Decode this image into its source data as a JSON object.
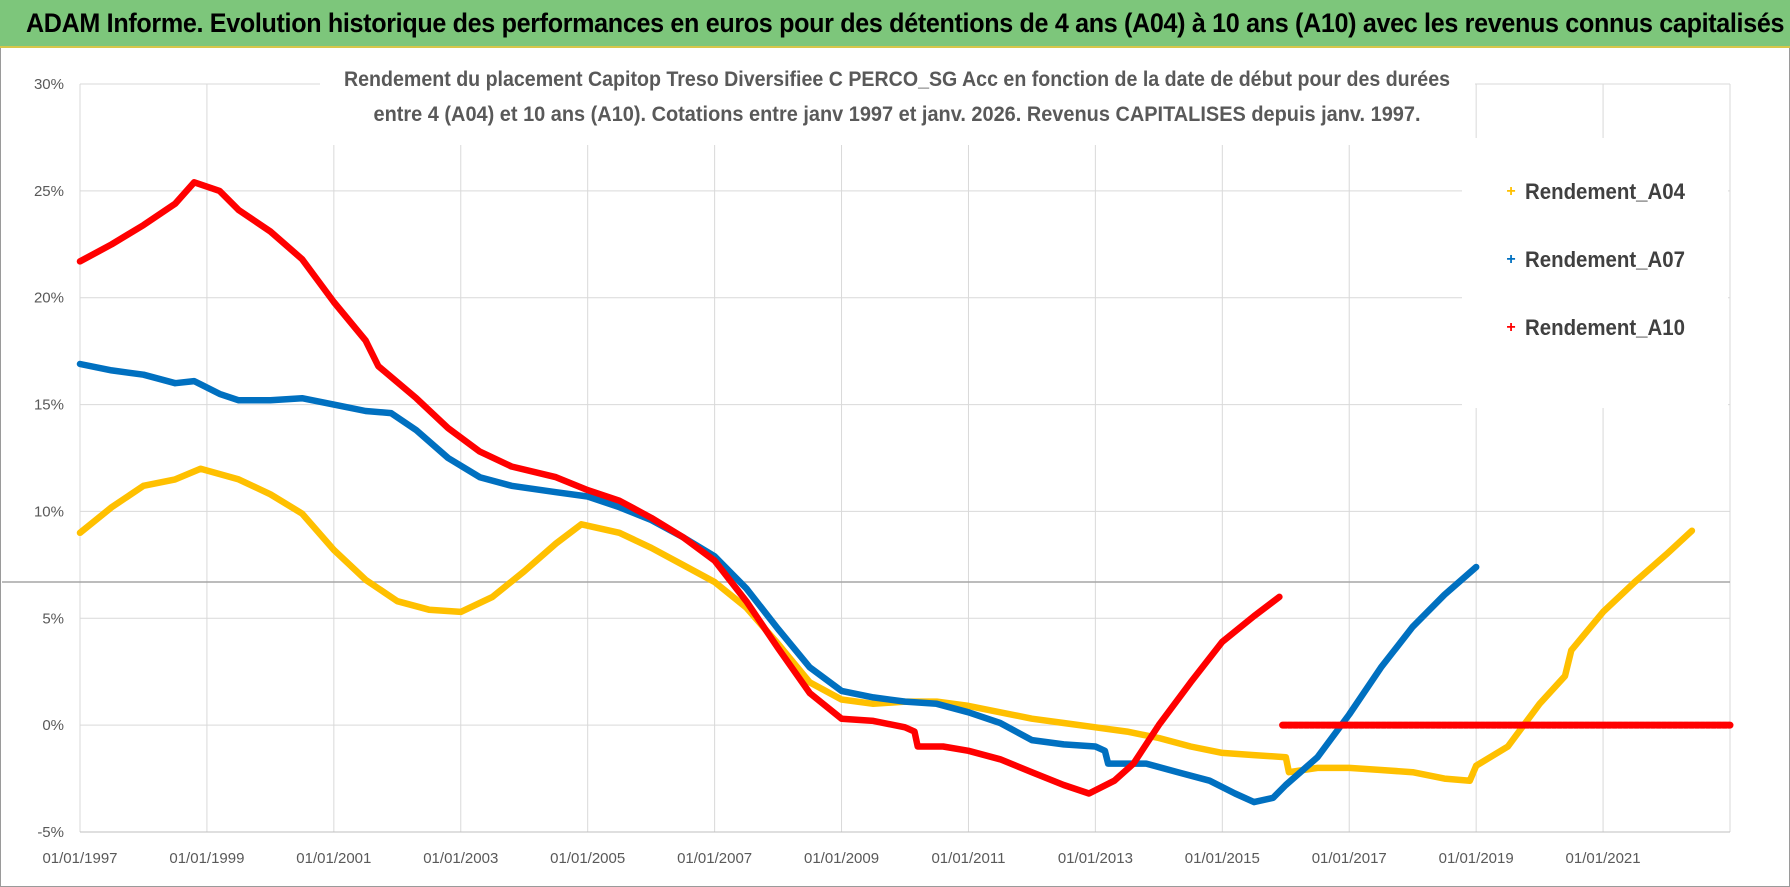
{
  "banner": {
    "title": "ADAM Informe. Evolution historique des performances en euros pour des détentions de 4 ans (A04) à 10 ans (A10) avec les revenus connus capitalisés"
  },
  "colors": {
    "banner_bg": "#7dc67b",
    "A04": "#ffc000",
    "A07": "#0070c0",
    "A10": "#ff0000",
    "grid": "#d9d9d9"
  },
  "chart_data": {
    "type": "line",
    "title_lines": [
      "Rendement du placement Capitop Treso Diversifiee C PERCO_SG Acc en fonction de la date de début pour des durées",
      "entre 4 (A04) et 10 ans (A10).  Cotations entre janv 1997 et janv. 2026. Revenus CAPITALISES depuis janv. 1997."
    ],
    "x_unit": "year",
    "xlim": [
      1997.0,
      2023.0
    ],
    "ylim": [
      -5,
      30
    ],
    "x_tick_labels": [
      "01/01/1997",
      "01/01/1999",
      "01/01/2001",
      "01/01/2003",
      "01/01/2005",
      "01/01/2007",
      "01/01/2009",
      "01/01/2011",
      "01/01/2013",
      "01/01/2015",
      "01/01/2017",
      "01/01/2019",
      "01/01/2021"
    ],
    "x_tick_values": [
      1997,
      1999,
      2001,
      2003,
      2005,
      2007,
      2009,
      2011,
      2013,
      2015,
      2017,
      2019,
      2021
    ],
    "y_tick_labels": [
      "-5%",
      "0%",
      "5%",
      "10%",
      "15%",
      "20%",
      "25%",
      "30%"
    ],
    "y_tick_values": [
      -5,
      0,
      5,
      10,
      15,
      20,
      25,
      30
    ],
    "reference_line_y": 6.7,
    "legend": [
      {
        "label": "Rendement_A04",
        "marker": "+"
      },
      {
        "label": "Rendement_A07",
        "marker": "+"
      },
      {
        "label": "Rendement_A10",
        "marker": "+"
      }
    ],
    "series": [
      {
        "name": "Rendement_A04",
        "points": [
          [
            1997.0,
            9.0
          ],
          [
            1997.5,
            10.2
          ],
          [
            1998.0,
            11.2
          ],
          [
            1998.5,
            11.5
          ],
          [
            1998.9,
            12.0
          ],
          [
            1999.5,
            11.5
          ],
          [
            2000.0,
            10.8
          ],
          [
            2000.5,
            9.9
          ],
          [
            2001.0,
            8.2
          ],
          [
            2001.5,
            6.8
          ],
          [
            2002.0,
            5.8
          ],
          [
            2002.5,
            5.4
          ],
          [
            2003.0,
            5.3
          ],
          [
            2003.5,
            6.0
          ],
          [
            2004.0,
            7.2
          ],
          [
            2004.5,
            8.5
          ],
          [
            2004.9,
            9.4
          ],
          [
            2005.5,
            9.0
          ],
          [
            2006.0,
            8.3
          ],
          [
            2006.5,
            7.5
          ],
          [
            2007.0,
            6.7
          ],
          [
            2007.5,
            5.5
          ],
          [
            2008.0,
            3.8
          ],
          [
            2008.5,
            2.0
          ],
          [
            2009.0,
            1.2
          ],
          [
            2009.5,
            1.0
          ],
          [
            2010.0,
            1.1
          ],
          [
            2010.5,
            1.1
          ],
          [
            2011.0,
            0.9
          ],
          [
            2011.5,
            0.6
          ],
          [
            2012.0,
            0.3
          ],
          [
            2012.5,
            0.1
          ],
          [
            2013.0,
            -0.1
          ],
          [
            2013.5,
            -0.3
          ],
          [
            2014.0,
            -0.6
          ],
          [
            2014.5,
            -1.0
          ],
          [
            2015.0,
            -1.3
          ],
          [
            2015.5,
            -1.4
          ],
          [
            2016.0,
            -1.5
          ],
          [
            2016.05,
            -2.2
          ],
          [
            2016.5,
            -2.0
          ],
          [
            2017.0,
            -2.0
          ],
          [
            2017.5,
            -2.1
          ],
          [
            2018.0,
            -2.2
          ],
          [
            2018.5,
            -2.5
          ],
          [
            2018.9,
            -2.6
          ],
          [
            2019.0,
            -1.9
          ],
          [
            2019.5,
            -1.0
          ],
          [
            2020.0,
            1.0
          ],
          [
            2020.4,
            2.3
          ],
          [
            2020.5,
            3.5
          ],
          [
            2021.0,
            5.3
          ],
          [
            2021.5,
            6.7
          ],
          [
            2022.0,
            8.0
          ],
          [
            2022.4,
            9.1
          ]
        ]
      },
      {
        "name": "Rendement_A07",
        "points": [
          [
            1997.0,
            16.9
          ],
          [
            1997.5,
            16.6
          ],
          [
            1998.0,
            16.4
          ],
          [
            1998.5,
            16.0
          ],
          [
            1998.8,
            16.1
          ],
          [
            1999.2,
            15.5
          ],
          [
            1999.5,
            15.2
          ],
          [
            2000.0,
            15.2
          ],
          [
            2000.5,
            15.3
          ],
          [
            2001.0,
            15.0
          ],
          [
            2001.5,
            14.7
          ],
          [
            2001.9,
            14.6
          ],
          [
            2002.3,
            13.8
          ],
          [
            2002.8,
            12.5
          ],
          [
            2003.3,
            11.6
          ],
          [
            2003.8,
            11.2
          ],
          [
            2004.5,
            10.9
          ],
          [
            2005.0,
            10.7
          ],
          [
            2005.5,
            10.2
          ],
          [
            2006.0,
            9.6
          ],
          [
            2006.5,
            8.8
          ],
          [
            2007.0,
            7.9
          ],
          [
            2007.5,
            6.4
          ],
          [
            2008.0,
            4.5
          ],
          [
            2008.5,
            2.7
          ],
          [
            2009.0,
            1.6
          ],
          [
            2009.5,
            1.3
          ],
          [
            2010.0,
            1.1
          ],
          [
            2010.5,
            1.0
          ],
          [
            2011.0,
            0.6
          ],
          [
            2011.5,
            0.1
          ],
          [
            2012.0,
            -0.7
          ],
          [
            2012.5,
            -0.9
          ],
          [
            2013.0,
            -1.0
          ],
          [
            2013.15,
            -1.2
          ],
          [
            2013.2,
            -1.8
          ],
          [
            2013.8,
            -1.8
          ],
          [
            2014.3,
            -2.2
          ],
          [
            2014.8,
            -2.6
          ],
          [
            2015.2,
            -3.2
          ],
          [
            2015.5,
            -3.6
          ],
          [
            2015.8,
            -3.4
          ],
          [
            2016.0,
            -2.8
          ],
          [
            2016.5,
            -1.5
          ],
          [
            2017.0,
            0.5
          ],
          [
            2017.5,
            2.7
          ],
          [
            2018.0,
            4.6
          ],
          [
            2018.5,
            6.1
          ],
          [
            2019.0,
            7.4
          ]
        ]
      },
      {
        "name": "Rendement_A10",
        "points": [
          [
            1997.0,
            21.7
          ],
          [
            1997.5,
            22.5
          ],
          [
            1998.0,
            23.4
          ],
          [
            1998.5,
            24.4
          ],
          [
            1998.8,
            25.4
          ],
          [
            1999.2,
            25.0
          ],
          [
            1999.5,
            24.1
          ],
          [
            2000.0,
            23.1
          ],
          [
            2000.5,
            21.8
          ],
          [
            2001.0,
            19.8
          ],
          [
            2001.5,
            18.0
          ],
          [
            2001.7,
            16.8
          ],
          [
            2002.3,
            15.3
          ],
          [
            2002.8,
            13.9
          ],
          [
            2003.3,
            12.8
          ],
          [
            2003.8,
            12.1
          ],
          [
            2004.5,
            11.6
          ],
          [
            2005.0,
            11.0
          ],
          [
            2005.5,
            10.5
          ],
          [
            2006.0,
            9.7
          ],
          [
            2006.5,
            8.8
          ],
          [
            2007.0,
            7.7
          ],
          [
            2007.5,
            5.8
          ],
          [
            2008.0,
            3.6
          ],
          [
            2008.5,
            1.5
          ],
          [
            2009.0,
            0.3
          ],
          [
            2009.5,
            0.2
          ],
          [
            2010.0,
            -0.1
          ],
          [
            2010.15,
            -0.3
          ],
          [
            2010.2,
            -1.0
          ],
          [
            2010.6,
            -1.0
          ],
          [
            2011.0,
            -1.2
          ],
          [
            2011.5,
            -1.6
          ],
          [
            2012.0,
            -2.2
          ],
          [
            2012.5,
            -2.8
          ],
          [
            2012.9,
            -3.2
          ],
          [
            2013.3,
            -2.6
          ],
          [
            2013.6,
            -1.8
          ],
          [
            2014.0,
            0.0
          ],
          [
            2014.5,
            2.0
          ],
          [
            2015.0,
            3.9
          ],
          [
            2015.5,
            5.1
          ],
          [
            2015.9,
            6.0
          ]
        ]
      },
      {
        "name": "Rendement_A10_zero_tail",
        "legend_entry": false,
        "points": [
          [
            2015.95,
            0.0
          ],
          [
            2023.0,
            0.0
          ]
        ]
      }
    ]
  }
}
